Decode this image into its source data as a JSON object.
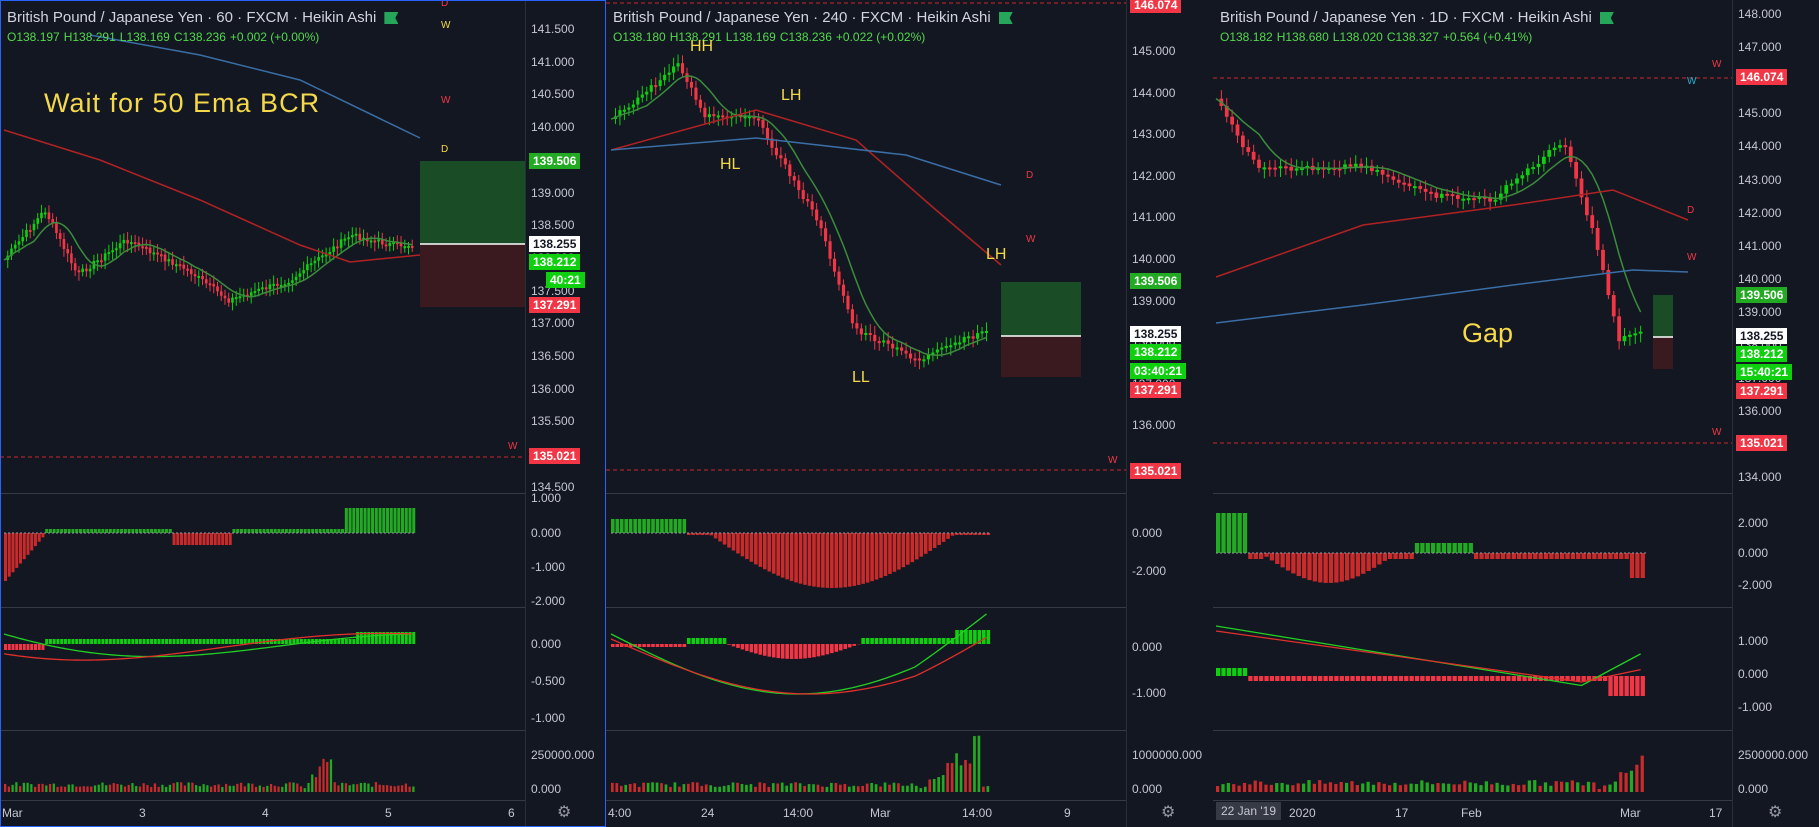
{
  "panes": [
    {
      "title": "British Pound / Japanese Yen · 60 · FXCM · Heikin Ashi",
      "ohlc": {
        "o": "O138.197",
        "h": "H138.291",
        "l": "L138.169",
        "c": "C138.236",
        "chg": "+0.002 (+0.00%)"
      },
      "annotation": "Wait for 50 Ema BCR",
      "price_ticks": [
        "141.500",
        "141.000",
        "140.500",
        "140.000",
        "139.500",
        "139.000",
        "138.500",
        "138.000",
        "137.500",
        "137.000",
        "136.500",
        "136.000",
        "135.500",
        "135.000",
        "134.500"
      ],
      "tags": {
        "top_green": "139.506",
        "white": "138.255",
        "green": "138.212",
        "timer": "40:21",
        "red": "137.291",
        "bottom_red": "135.021"
      },
      "ind1_ticks": [
        "1.000",
        "0.000",
        "-1.000",
        "-2.000"
      ],
      "ind2_ticks": [
        "0.000",
        "-0.500",
        "-1.000"
      ],
      "vol_ticks": [
        "250000.000",
        "0.000"
      ],
      "x_ticks": [
        "Mar",
        "3",
        "4",
        "5",
        "6"
      ],
      "level_labels": {
        "d1": "D",
        "w1": "W",
        "w2": "W",
        "d2": "D",
        "w_bottom": "W"
      }
    },
    {
      "title": "British Pound / Japanese Yen · 240 · FXCM · Heikin Ashi",
      "ohlc": {
        "o": "O138.180",
        "h": "H138.291",
        "l": "L138.169",
        "c": "C138.236",
        "chg": "+0.022 (+0.02%)"
      },
      "annotations": {
        "hh": "HH",
        "hl": "HL",
        "lh1": "LH",
        "lh2": "LH",
        "ll": "LL"
      },
      "price_ticks": [
        "145.000",
        "144.000",
        "143.000",
        "142.000",
        "141.000",
        "140.000",
        "139.000",
        "138.000",
        "137.000",
        "136.000"
      ],
      "tags": {
        "top_red": "146.074",
        "green": "139.506",
        "white": "138.255",
        "green2": "138.212",
        "timer": "03:40:21",
        "red": "137.291",
        "bottom_red": "135.021"
      },
      "ind1_ticks": [
        "0.000",
        "-2.000"
      ],
      "ind2_ticks": [
        "0.000",
        "-1.000"
      ],
      "vol_ticks": [
        "1000000.000",
        "0.000"
      ],
      "x_ticks": [
        "4:00",
        "24",
        "14:00",
        "Mar",
        "14:00",
        "9"
      ],
      "level_labels": {
        "d": "D",
        "w": "W",
        "w_bottom": "W"
      }
    },
    {
      "title": "British Pound / Japanese Yen · 1D · FXCM · Heikin Ashi",
      "ohlc": {
        "o": "O138.182",
        "h": "H138.680",
        "l": "L138.020",
        "c": "C138.327",
        "chg": "+0.564 (+0.41%)"
      },
      "annotation": "Gap",
      "price_ticks": [
        "148.000",
        "147.000",
        "146.000",
        "145.000",
        "144.000",
        "143.000",
        "142.000",
        "141.000",
        "140.000",
        "139.000",
        "138.000",
        "137.000",
        "136.000",
        "135.000",
        "134.000"
      ],
      "tags": {
        "top_red": "146.074",
        "green": "139.506",
        "white": "138.255",
        "green2": "138.212",
        "timer": "15:40:21",
        "red": "137.291",
        "bottom_red": "135.021"
      },
      "ind1_ticks": [
        "2.000",
        "0.000",
        "-2.000"
      ],
      "ind2_ticks": [
        "1.000",
        "0.000",
        "-1.000"
      ],
      "vol_ticks": [
        "2500000.000",
        "0.000"
      ],
      "x_ticks": [
        "2020",
        "17",
        "Feb",
        "Mar",
        "17"
      ],
      "date_chip": "22 Jan '19",
      "level_labels": {
        "w_top": "W",
        "w_cyan": "W",
        "d": "D",
        "w": "W",
        "w_bottom": "W"
      }
    }
  ],
  "colors": {
    "bg": "#131722",
    "up": "#0fd00f",
    "down": "#f23645",
    "ema_short": "#3c8c3c",
    "ema_mid": "#b22222",
    "ema_long": "#3a6ea5",
    "annotation": "#f5d94a"
  }
}
